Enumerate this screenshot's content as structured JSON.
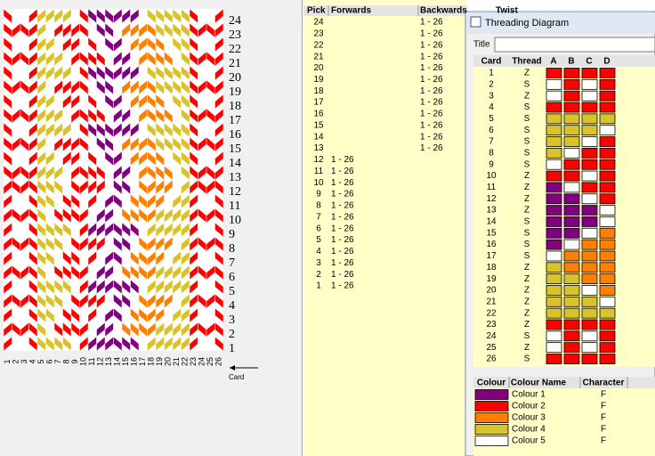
{
  "weave": {
    "axis_label": "Card"
  },
  "picks": {
    "headers": [
      "Pick",
      "Forwards",
      "Backwards",
      "Twist"
    ],
    "rows": [
      {
        "pick": 24,
        "backwards": "1 - 26"
      },
      {
        "pick": 23,
        "backwards": "1 - 26"
      },
      {
        "pick": 22,
        "backwards": "1 - 26"
      },
      {
        "pick": 21,
        "backwards": "1 - 26"
      },
      {
        "pick": 20,
        "backwards": "1 - 26"
      },
      {
        "pick": 19,
        "backwards": "1 - 26"
      },
      {
        "pick": 18,
        "backwards": "1 - 26"
      },
      {
        "pick": 17,
        "backwards": "1 - 26"
      },
      {
        "pick": 16,
        "backwards": "1 - 26"
      },
      {
        "pick": 15,
        "backwards": "1 - 26"
      },
      {
        "pick": 14,
        "backwards": "1 - 26"
      },
      {
        "pick": 13,
        "backwards": "1 - 26"
      },
      {
        "pick": 12,
        "forwards": "1 - 26"
      },
      {
        "pick": 11,
        "forwards": "1 - 26"
      },
      {
        "pick": 10,
        "forwards": "1 - 26"
      },
      {
        "pick": 9,
        "forwards": "1 - 26"
      },
      {
        "pick": 8,
        "forwards": "1 - 26"
      },
      {
        "pick": 7,
        "forwards": "1 - 26"
      },
      {
        "pick": 6,
        "forwards": "1 - 26"
      },
      {
        "pick": 5,
        "forwards": "1 - 26"
      },
      {
        "pick": 4,
        "forwards": "1 - 26"
      },
      {
        "pick": 3,
        "forwards": "1 - 26"
      },
      {
        "pick": 2,
        "forwards": "1 - 26"
      },
      {
        "pick": 1,
        "forwards": "1 - 26"
      }
    ]
  },
  "threading": {
    "window_title": "Threading Diagram",
    "title_label": "Title",
    "headers": [
      "Card",
      "Thread",
      "A",
      "B",
      "C",
      "D"
    ],
    "rows": [
      {
        "card": 1,
        "thread": "Z",
        "holes": [
          "#ff0000",
          "#ff0000",
          "#ff0000",
          "#ff0000"
        ]
      },
      {
        "card": 2,
        "thread": "S",
        "holes": [
          "#ffffff",
          "#ff0000",
          "#ffffff",
          "#ff0000"
        ]
      },
      {
        "card": 3,
        "thread": "Z",
        "holes": [
          "#ffffff",
          "#ff0000",
          "#ffffff",
          "#ff0000"
        ]
      },
      {
        "card": 4,
        "thread": "S",
        "holes": [
          "#ff0000",
          "#ff0000",
          "#ff0000",
          "#ff0000"
        ]
      },
      {
        "card": 5,
        "thread": "S",
        "holes": [
          "#d8c42a",
          "#d8c42a",
          "#d8c42a",
          "#d8c42a"
        ]
      },
      {
        "card": 6,
        "thread": "S",
        "holes": [
          "#d8c42a",
          "#d8c42a",
          "#d8c42a",
          "#ffffff"
        ]
      },
      {
        "card": 7,
        "thread": "S",
        "holes": [
          "#d8c42a",
          "#d8c42a",
          "#ffffff",
          "#ff0000"
        ]
      },
      {
        "card": 8,
        "thread": "S",
        "holes": [
          "#d8c42a",
          "#ffffff",
          "#ff0000",
          "#ff0000"
        ]
      },
      {
        "card": 9,
        "thread": "S",
        "holes": [
          "#ffffff",
          "#ff0000",
          "#ff0000",
          "#ff0000"
        ]
      },
      {
        "card": 10,
        "thread": "Z",
        "holes": [
          "#ff0000",
          "#ff0000",
          "#ffffff",
          "#ff0000"
        ]
      },
      {
        "card": 11,
        "thread": "Z",
        "holes": [
          "#800080",
          "#ffffff",
          "#ff0000",
          "#ff0000"
        ]
      },
      {
        "card": 12,
        "thread": "Z",
        "holes": [
          "#800080",
          "#800080",
          "#ffffff",
          "#ff0000"
        ]
      },
      {
        "card": 13,
        "thread": "Z",
        "holes": [
          "#800080",
          "#800080",
          "#800080",
          "#ffffff"
        ]
      },
      {
        "card": 14,
        "thread": "S",
        "holes": [
          "#800080",
          "#800080",
          "#800080",
          "#ffffff"
        ]
      },
      {
        "card": 15,
        "thread": "S",
        "holes": [
          "#800080",
          "#800080",
          "#ffffff",
          "#ff8000"
        ]
      },
      {
        "card": 16,
        "thread": "S",
        "holes": [
          "#800080",
          "#ffffff",
          "#ff8000",
          "#ff8000"
        ]
      },
      {
        "card": 17,
        "thread": "S",
        "holes": [
          "#ffffff",
          "#ff8000",
          "#ff8000",
          "#ff8000"
        ]
      },
      {
        "card": 18,
        "thread": "Z",
        "holes": [
          "#d8c42a",
          "#ff8000",
          "#ff8000",
          "#ff8000"
        ]
      },
      {
        "card": 19,
        "thread": "Z",
        "holes": [
          "#d8c42a",
          "#d8c42a",
          "#ff8000",
          "#ff8000"
        ]
      },
      {
        "card": 20,
        "thread": "Z",
        "holes": [
          "#d8c42a",
          "#d8c42a",
          "#ffffff",
          "#ff8000"
        ]
      },
      {
        "card": 21,
        "thread": "Z",
        "holes": [
          "#d8c42a",
          "#d8c42a",
          "#d8c42a",
          "#ffffff"
        ]
      },
      {
        "card": 22,
        "thread": "Z",
        "holes": [
          "#d8c42a",
          "#d8c42a",
          "#d8c42a",
          "#d8c42a"
        ]
      },
      {
        "card": 23,
        "thread": "Z",
        "holes": [
          "#ff0000",
          "#ff0000",
          "#ff0000",
          "#ff0000"
        ]
      },
      {
        "card": 24,
        "thread": "S",
        "holes": [
          "#ffffff",
          "#ff0000",
          "#ffffff",
          "#ff0000"
        ]
      },
      {
        "card": 25,
        "thread": "Z",
        "holes": [
          "#ffffff",
          "#ff0000",
          "#ffffff",
          "#ff0000"
        ]
      },
      {
        "card": 26,
        "thread": "S",
        "holes": [
          "#ff0000",
          "#ff0000",
          "#ff0000",
          "#ff0000"
        ]
      }
    ]
  },
  "colours": {
    "headers": [
      "Colour",
      "Colour Name",
      "Character"
    ],
    "rows": [
      {
        "color": "#800080",
        "name": "Colour 1",
        "character": "F"
      },
      {
        "color": "#ff0000",
        "name": "Colour 2",
        "character": "F"
      },
      {
        "color": "#ff8000",
        "name": "Colour 3",
        "character": "F"
      },
      {
        "color": "#d8c42a",
        "name": "Colour 4",
        "character": "F"
      },
      {
        "color": "#ffffff",
        "name": "Colour 5",
        "character": "F"
      }
    ]
  }
}
